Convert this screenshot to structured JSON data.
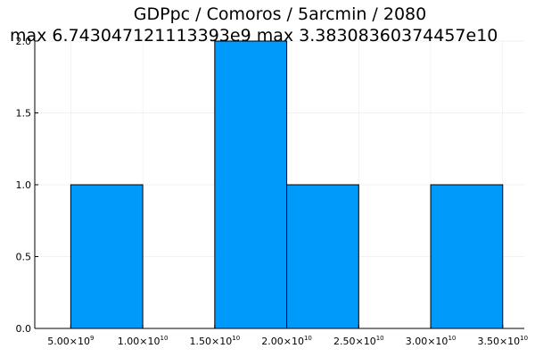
{
  "chart_data": {
    "type": "bar",
    "title": "GDPpc / Comoros / 5arcmin / 2080",
    "subtitle": "max 6.743047121113393e9  max 3.38308360374457e10",
    "xlabel": "",
    "ylabel": "",
    "xlim": [
      2500000000,
      36500000000
    ],
    "ylim": [
      0,
      2
    ],
    "grid": true,
    "legend": "none",
    "bar_color": "#009AFA",
    "bins": [
      {
        "x0": 5000000000,
        "x1": 10000000000,
        "count": 1
      },
      {
        "x0": 10000000000,
        "x1": 15000000000,
        "count": 0
      },
      {
        "x0": 15000000000,
        "x1": 20000000000,
        "count": 2
      },
      {
        "x0": 20000000000,
        "x1": 25000000000,
        "count": 1
      },
      {
        "x0": 25000000000,
        "x1": 30000000000,
        "count": 0
      },
      {
        "x0": 30000000000,
        "x1": 35000000000,
        "count": 1
      }
    ],
    "x_ticks": [
      {
        "value": 5000000000,
        "mantissa": "5.00×10",
        "exponent": "9"
      },
      {
        "value": 10000000000,
        "mantissa": "1.00×10",
        "exponent": "10"
      },
      {
        "value": 15000000000,
        "mantissa": "1.50×10",
        "exponent": "10"
      },
      {
        "value": 20000000000,
        "mantissa": "2.00×10",
        "exponent": "10"
      },
      {
        "value": 25000000000,
        "mantissa": "2.50×10",
        "exponent": "10"
      },
      {
        "value": 30000000000,
        "mantissa": "3.00×10",
        "exponent": "10"
      },
      {
        "value": 35000000000,
        "mantissa": "3.50×10",
        "exponent": "10"
      }
    ],
    "y_ticks": [
      {
        "value": 0,
        "label": "0.0"
      },
      {
        "value": 0.5,
        "label": "0.5"
      },
      {
        "value": 1,
        "label": "1.0"
      },
      {
        "value": 1.5,
        "label": "1.5"
      },
      {
        "value": 2,
        "label": "2.0"
      }
    ]
  }
}
